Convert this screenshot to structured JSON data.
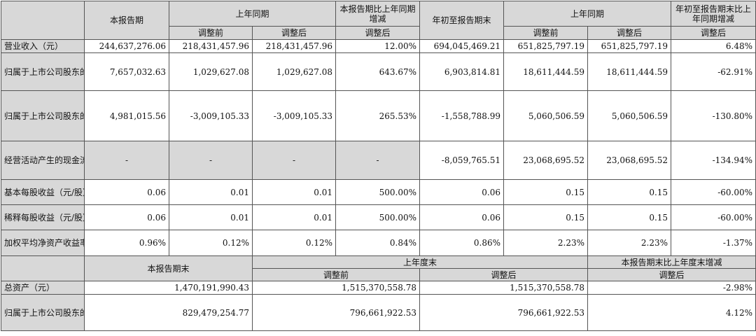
{
  "header": {
    "current_period": "本报告期",
    "same_period_last_year": "上年同期",
    "change_period": "本报告期比上年同期增减",
    "ytd": "年初至报告期末",
    "same_period_last_year_2": "上年同期",
    "change_ytd": "年初至报告期末比上年同期增减",
    "before_adj": "调整前",
    "after_adj": "调整后"
  },
  "rows": [
    {
      "label": "营业收入（元）",
      "cur": "244,637,276.06",
      "prev_before": "218,431,457.96",
      "prev_after": "218,431,457.96",
      "chg": "12.00%",
      "ytd": "694,045,469.21",
      "ytd_prev_before": "651,825,797.19",
      "ytd_prev_after": "651,825,797.19",
      "ytd_chg": "6.48%"
    },
    {
      "label": "归属于上市公司股东的净利润（元）",
      "cur": "7,657,032.63",
      "prev_before": "1,029,627.08",
      "prev_after": "1,029,627.08",
      "chg": "643.67%",
      "ytd": "6,903,814.81",
      "ytd_prev_before": "18,611,444.59",
      "ytd_prev_after": "18,611,444.59",
      "ytd_chg": "-62.91%"
    },
    {
      "label": "归属于上市公司股东的扣除非经常性损益的净利润（元）",
      "cur": "4,981,015.56",
      "prev_before": "-3,009,105.33",
      "prev_after": "-3,009,105.33",
      "chg": "265.53%",
      "ytd": "-1,558,788.99",
      "ytd_prev_before": "5,060,506.59",
      "ytd_prev_after": "5,060,506.59",
      "ytd_chg": "-130.80%"
    },
    {
      "label": "经营活动产生的现金流量净额（元）",
      "cur": "-",
      "prev_before": "-",
      "prev_after": "-",
      "chg": "-",
      "ytd": "-8,059,765.51",
      "ytd_prev_before": "23,068,695.52",
      "ytd_prev_after": "23,068,695.52",
      "ytd_chg": "-134.94%"
    },
    {
      "label": "基本每股收益（元/股）",
      "cur": "0.06",
      "prev_before": "0.01",
      "prev_after": "0.01",
      "chg": "500.00%",
      "ytd": "0.06",
      "ytd_prev_before": "0.15",
      "ytd_prev_after": "0.15",
      "ytd_chg": "-60.00%"
    },
    {
      "label": "稀释每股收益（元/股）",
      "cur": "0.06",
      "prev_before": "0.01",
      "prev_after": "0.01",
      "chg": "500.00%",
      "ytd": "0.06",
      "ytd_prev_before": "0.15",
      "ytd_prev_after": "0.15",
      "ytd_chg": "-60.00%"
    },
    {
      "label": "加权平均净资产收益率",
      "cur": "0.96%",
      "prev_before": "0.12%",
      "prev_after": "0.12%",
      "chg": "0.84%",
      "ytd": "0.86%",
      "ytd_prev_before": "2.23%",
      "ytd_prev_after": "2.23%",
      "ytd_chg": "-1.37%"
    }
  ],
  "header2": {
    "period_end": "本报告期末",
    "last_year_end": "上年度末",
    "change_vs_last_year_end": "本报告期末比上年度末增减",
    "before_adj": "调整前",
    "after_adj": "调整后",
    "after_adj_2": "调整后"
  },
  "rows2": [
    {
      "label": "总资产（元）",
      "cur": "1,470,191,990.43",
      "before": "1,515,370,558.78",
      "after": "1,515,370,558.78",
      "chg": "-2.98%"
    },
    {
      "label": "归属于上市公司股东的所有者权益（元）",
      "cur": "829,479,254.77",
      "before": "796,661,922.53",
      "after": "796,661,922.53",
      "chg": "4.12%"
    }
  ]
}
